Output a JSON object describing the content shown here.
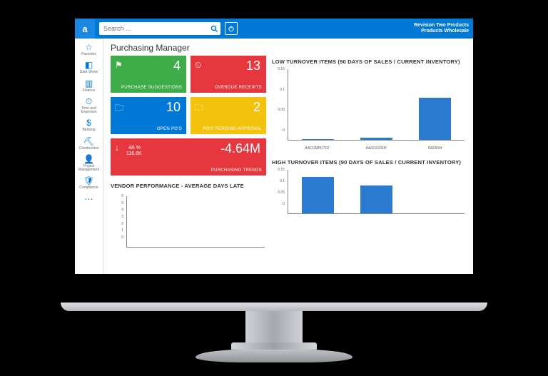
{
  "app": {
    "company_line1": "Revision Two Products",
    "company_line2": "Products Wholesale",
    "search_placeholder": "Search ..."
  },
  "colors": {
    "topbar": "#0078d6",
    "tile_green": "#3eac49",
    "tile_red": "#e6373f",
    "tile_blue": "#0078d6",
    "tile_yellow": "#f4c20d",
    "bar": "#2a7bd0"
  },
  "sidebar": {
    "items": [
      {
        "icon": "☆",
        "label": "Favorites"
      },
      {
        "icon": "◧",
        "label": "Data Views"
      },
      {
        "icon": "▥",
        "label": "Finance"
      },
      {
        "icon": "⏱",
        "label": "Time and Expenses"
      },
      {
        "icon": "$",
        "label": "Banking"
      },
      {
        "icon": "⛏",
        "label": "Construction"
      },
      {
        "icon": "👤",
        "label": "Project Management"
      },
      {
        "icon": "🛡",
        "label": "Compliance"
      },
      {
        "icon": "⋯",
        "label": ""
      }
    ]
  },
  "page": {
    "title": "Purchasing Manager"
  },
  "tiles": [
    {
      "value": "4",
      "label": "PURCHASE SUGGESTIONS",
      "icon": "⚑",
      "bg": "#3eac49"
    },
    {
      "value": "13",
      "label": "OVERDUE RECEIPTS",
      "icon": "⏲",
      "bg": "#e6373f"
    },
    {
      "value": "10",
      "label": "OPEN PO'S",
      "icon": "🗀",
      "bg": "#0078d6"
    },
    {
      "value": "2",
      "label": "PO'S PENDING APPROVAL",
      "icon": "🗀",
      "bg": "#f4c20d"
    }
  ],
  "trend_tile": {
    "icon": "↓",
    "pct": "-86 %",
    "sub": "116.6K",
    "value": "-4.64M",
    "label": "PURCHASING TRENDS",
    "bg": "#e6373f"
  },
  "vendor_panel": {
    "type": "bar",
    "title": "VENDOR PERFORMANCE - AVERAGE DAYS LATE",
    "ylim": [
      0,
      6
    ],
    "yticks": [
      0,
      1,
      2,
      3,
      4,
      5,
      6
    ],
    "categories": [],
    "values": [],
    "bar_color": "#2a7bd0",
    "grid_color": "#e0e0e0",
    "label_fontsize": 5
  },
  "low_turnover": {
    "type": "bar",
    "title": "LOW TURNOVER ITEMS (90 DAYS OF SALES / CURRENT INVENTORY)",
    "ylim": [
      0,
      0.15
    ],
    "yticks": [
      0,
      0.05,
      0.1,
      0.15
    ],
    "categories": [
      "AACOMPUT01",
      "AALEGO500",
      "IND2644"
    ],
    "values": [
      0.002,
      0.004,
      0.09
    ],
    "bar_color": "#2a7bd0",
    "bar_width": 0.55,
    "background_color": "#ffffff",
    "grid_color": "#e0e0e0",
    "label_fontsize": 5
  },
  "high_turnover": {
    "type": "bar",
    "title": "HIGH TURNOVER ITEMS (90 DAYS OF SALES / CURRENT INVENTORY)",
    "ylim": [
      0,
      0.15
    ],
    "yticks": [
      0,
      0.05,
      0.1,
      0.15
    ],
    "categories": [
      "",
      "",
      ""
    ],
    "values": [
      0.125,
      0.095,
      0
    ],
    "bar_color": "#2a7bd0",
    "bar_width": 0.55,
    "background_color": "#ffffff",
    "grid_color": "#e0e0e0",
    "label_fontsize": 5
  }
}
